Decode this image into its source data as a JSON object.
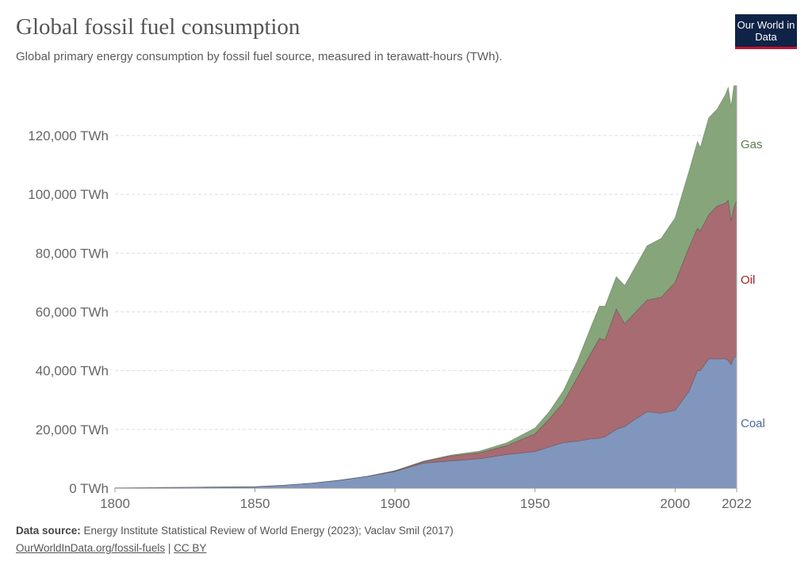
{
  "header": {
    "title": "Global fossil fuel consumption",
    "subtitle": "Global primary energy consumption by fossil fuel source, measured in terawatt-hours (TWh).",
    "logo_text": "Our World in Data"
  },
  "footer": {
    "source_label": "Data source:",
    "source_text": "Energy Institute Statistical Review of World Energy (2023); Vaclav Smil (2017)",
    "link": "OurWorldInData.org/fossil-fuels",
    "separator": "|",
    "license": "CC BY"
  },
  "chart_data": {
    "type": "area",
    "stacked": true,
    "title": "Global fossil fuel consumption",
    "xlabel": "",
    "ylabel": "",
    "xlim": [
      1800,
      2022
    ],
    "ylim": [
      0,
      140000
    ],
    "x_ticks": [
      1800,
      1850,
      1900,
      1950,
      2000,
      2022
    ],
    "y_ticks": [
      0,
      20000,
      40000,
      60000,
      80000,
      100000,
      120000
    ],
    "y_tick_labels": [
      "0 TWh",
      "20,000 TWh",
      "40,000 TWh",
      "60,000 TWh",
      "80,000 TWh",
      "100,000 TWh",
      "120,000 TWh"
    ],
    "grid": "horizontal dashed",
    "legend": "right, inline labels",
    "x": [
      1800,
      1850,
      1860,
      1870,
      1880,
      1890,
      1900,
      1910,
      1920,
      1930,
      1940,
      1950,
      1955,
      1960,
      1965,
      1970,
      1973,
      1975,
      1979,
      1982,
      1985,
      1990,
      1995,
      2000,
      2005,
      2008,
      2009,
      2012,
      2015,
      2018,
      2019,
      2020,
      2021,
      2022
    ],
    "series": [
      {
        "name": "Coal",
        "color": "#8196bd",
        "label_color": "#4c6a9c",
        "values": [
          100,
          500,
          1000,
          1700,
          2700,
          4000,
          5700,
          8500,
          9300,
          10000,
          11500,
          12500,
          14000,
          15500,
          16000,
          16800,
          17000,
          17500,
          20000,
          21000,
          23000,
          26000,
          25500,
          26500,
          33000,
          40000,
          40000,
          44000,
          44000,
          44000,
          43500,
          42000,
          44500,
          45000
        ]
      },
      {
        "name": "Oil",
        "color": "#a86b71",
        "label_color": "#a2262c",
        "values": [
          0,
          0,
          0,
          0,
          0,
          50,
          200,
          500,
          1700,
          2000,
          3000,
          6000,
          9500,
          13500,
          21500,
          29200,
          34000,
          33000,
          41000,
          35000,
          36000,
          38000,
          39500,
          43500,
          49000,
          48500,
          47500,
          49000,
          52000,
          53000,
          54500,
          49000,
          51000,
          53000
        ]
      },
      {
        "name": "Gas",
        "color": "#86a57a",
        "label_color": "#5b7d4e",
        "values": [
          0,
          0,
          0,
          0,
          0,
          0,
          100,
          200,
          300,
          600,
          1000,
          2000,
          2500,
          4000,
          5500,
          9000,
          11000,
          11500,
          11000,
          13000,
          15000,
          18500,
          20000,
          22000,
          26000,
          29500,
          28500,
          33000,
          33000,
          37000,
          38500,
          39000,
          41500,
          39000
        ]
      }
    ]
  }
}
